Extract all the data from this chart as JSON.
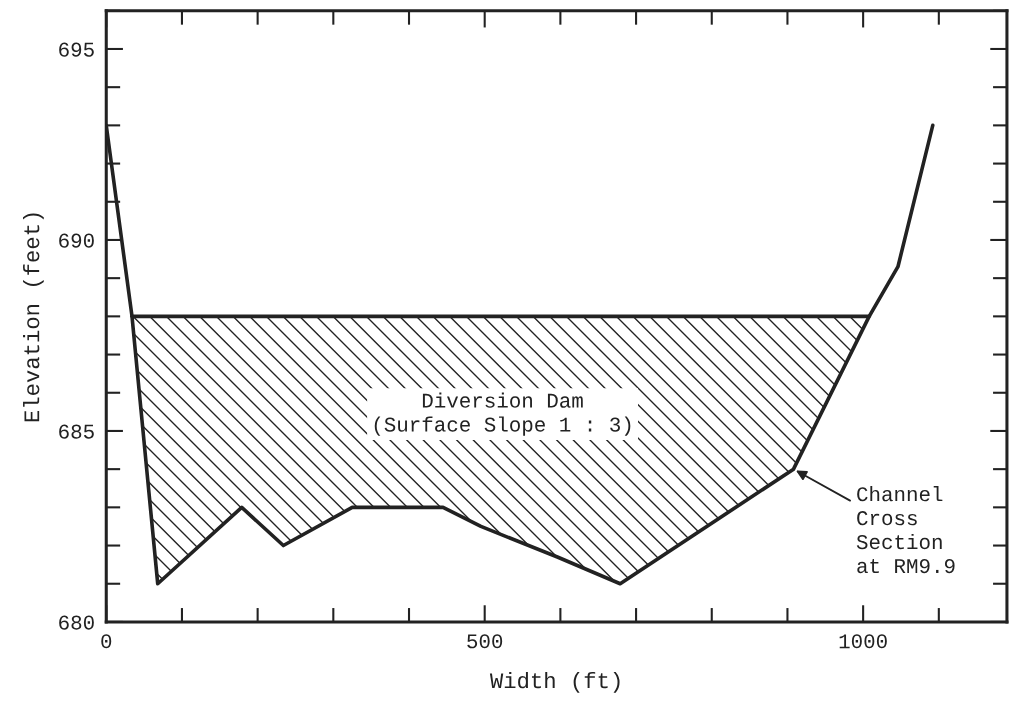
{
  "chart_data": {
    "type": "line",
    "xlabel": "Width (ft)",
    "ylabel": "Elevation (feet)",
    "xlim": [
      0,
      1190
    ],
    "ylim": [
      680,
      696
    ],
    "xticks": [
      0,
      500,
      1000
    ],
    "yticks": [
      680,
      685,
      690,
      695
    ],
    "grid": false,
    "marker": "none",
    "line_style": "solid",
    "series": [
      {
        "color": "#222222",
        "x": [
          34,
          1008
        ],
        "values": [
          688,
          688
        ]
      },
      {
        "color": "#222222",
        "x": [
          0,
          34,
          68,
          179,
          234,
          325,
          445,
          495,
          596,
          679,
          908,
          1008,
          1046,
          1092
        ],
        "values": [
          693,
          688,
          681,
          683,
          682,
          683,
          683,
          682.5,
          681.7,
          681,
          684,
          688,
          689.3,
          693
        ]
      }
    ],
    "annotations": [
      "Diversion Dam\n(Surface Slope 1 : 3)",
      {
        "text": "Channel\nCross\nSection\nat RM9.9",
        "x": 908,
        "y": 684
      }
    ]
  }
}
